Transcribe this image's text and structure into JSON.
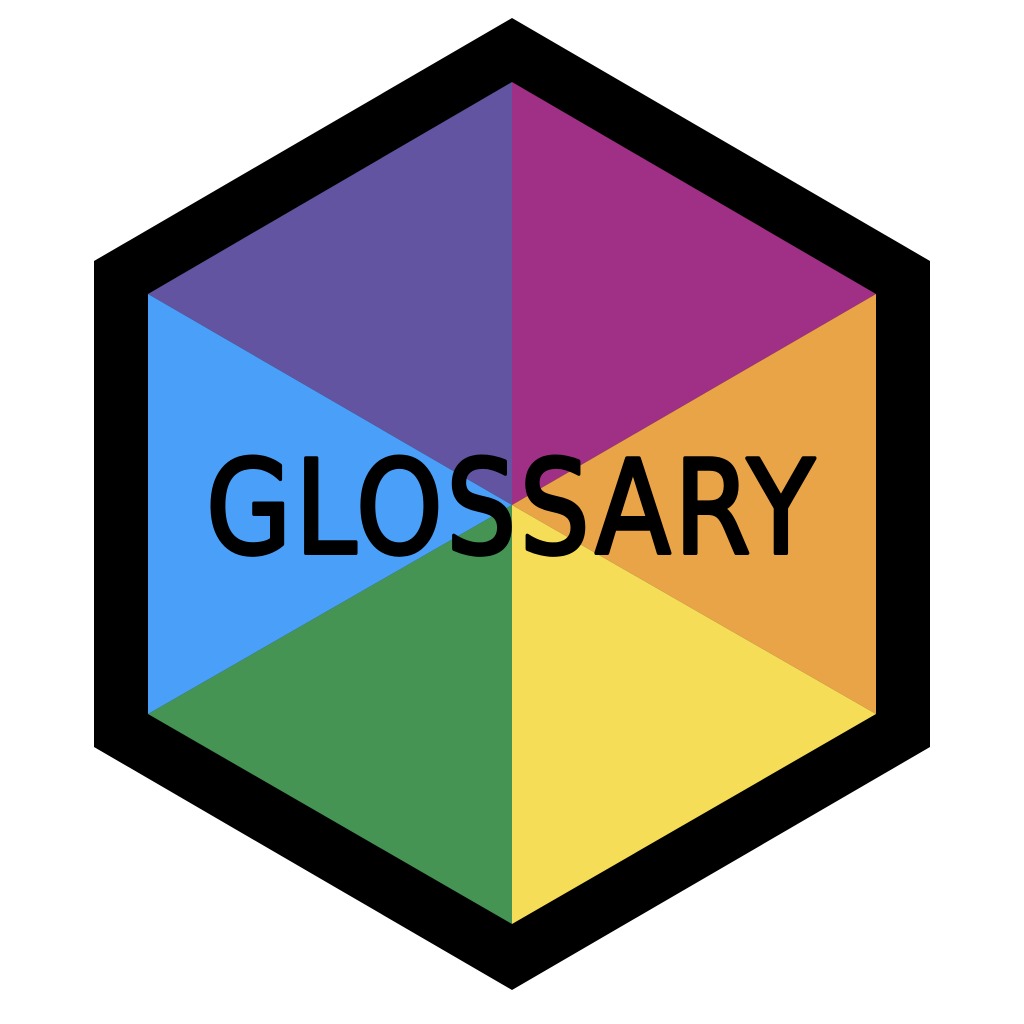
{
  "logo": {
    "title": "GLOSSARY",
    "frame_color": "#000000",
    "background_color": "#ffffff",
    "segment_colors": {
      "top_left": "#6254a1",
      "top_right": "#a03085",
      "right": "#eaa448",
      "bottom_right": "#f6dd58",
      "bottom_left": "#469454",
      "left": "#4aa0f8"
    }
  }
}
